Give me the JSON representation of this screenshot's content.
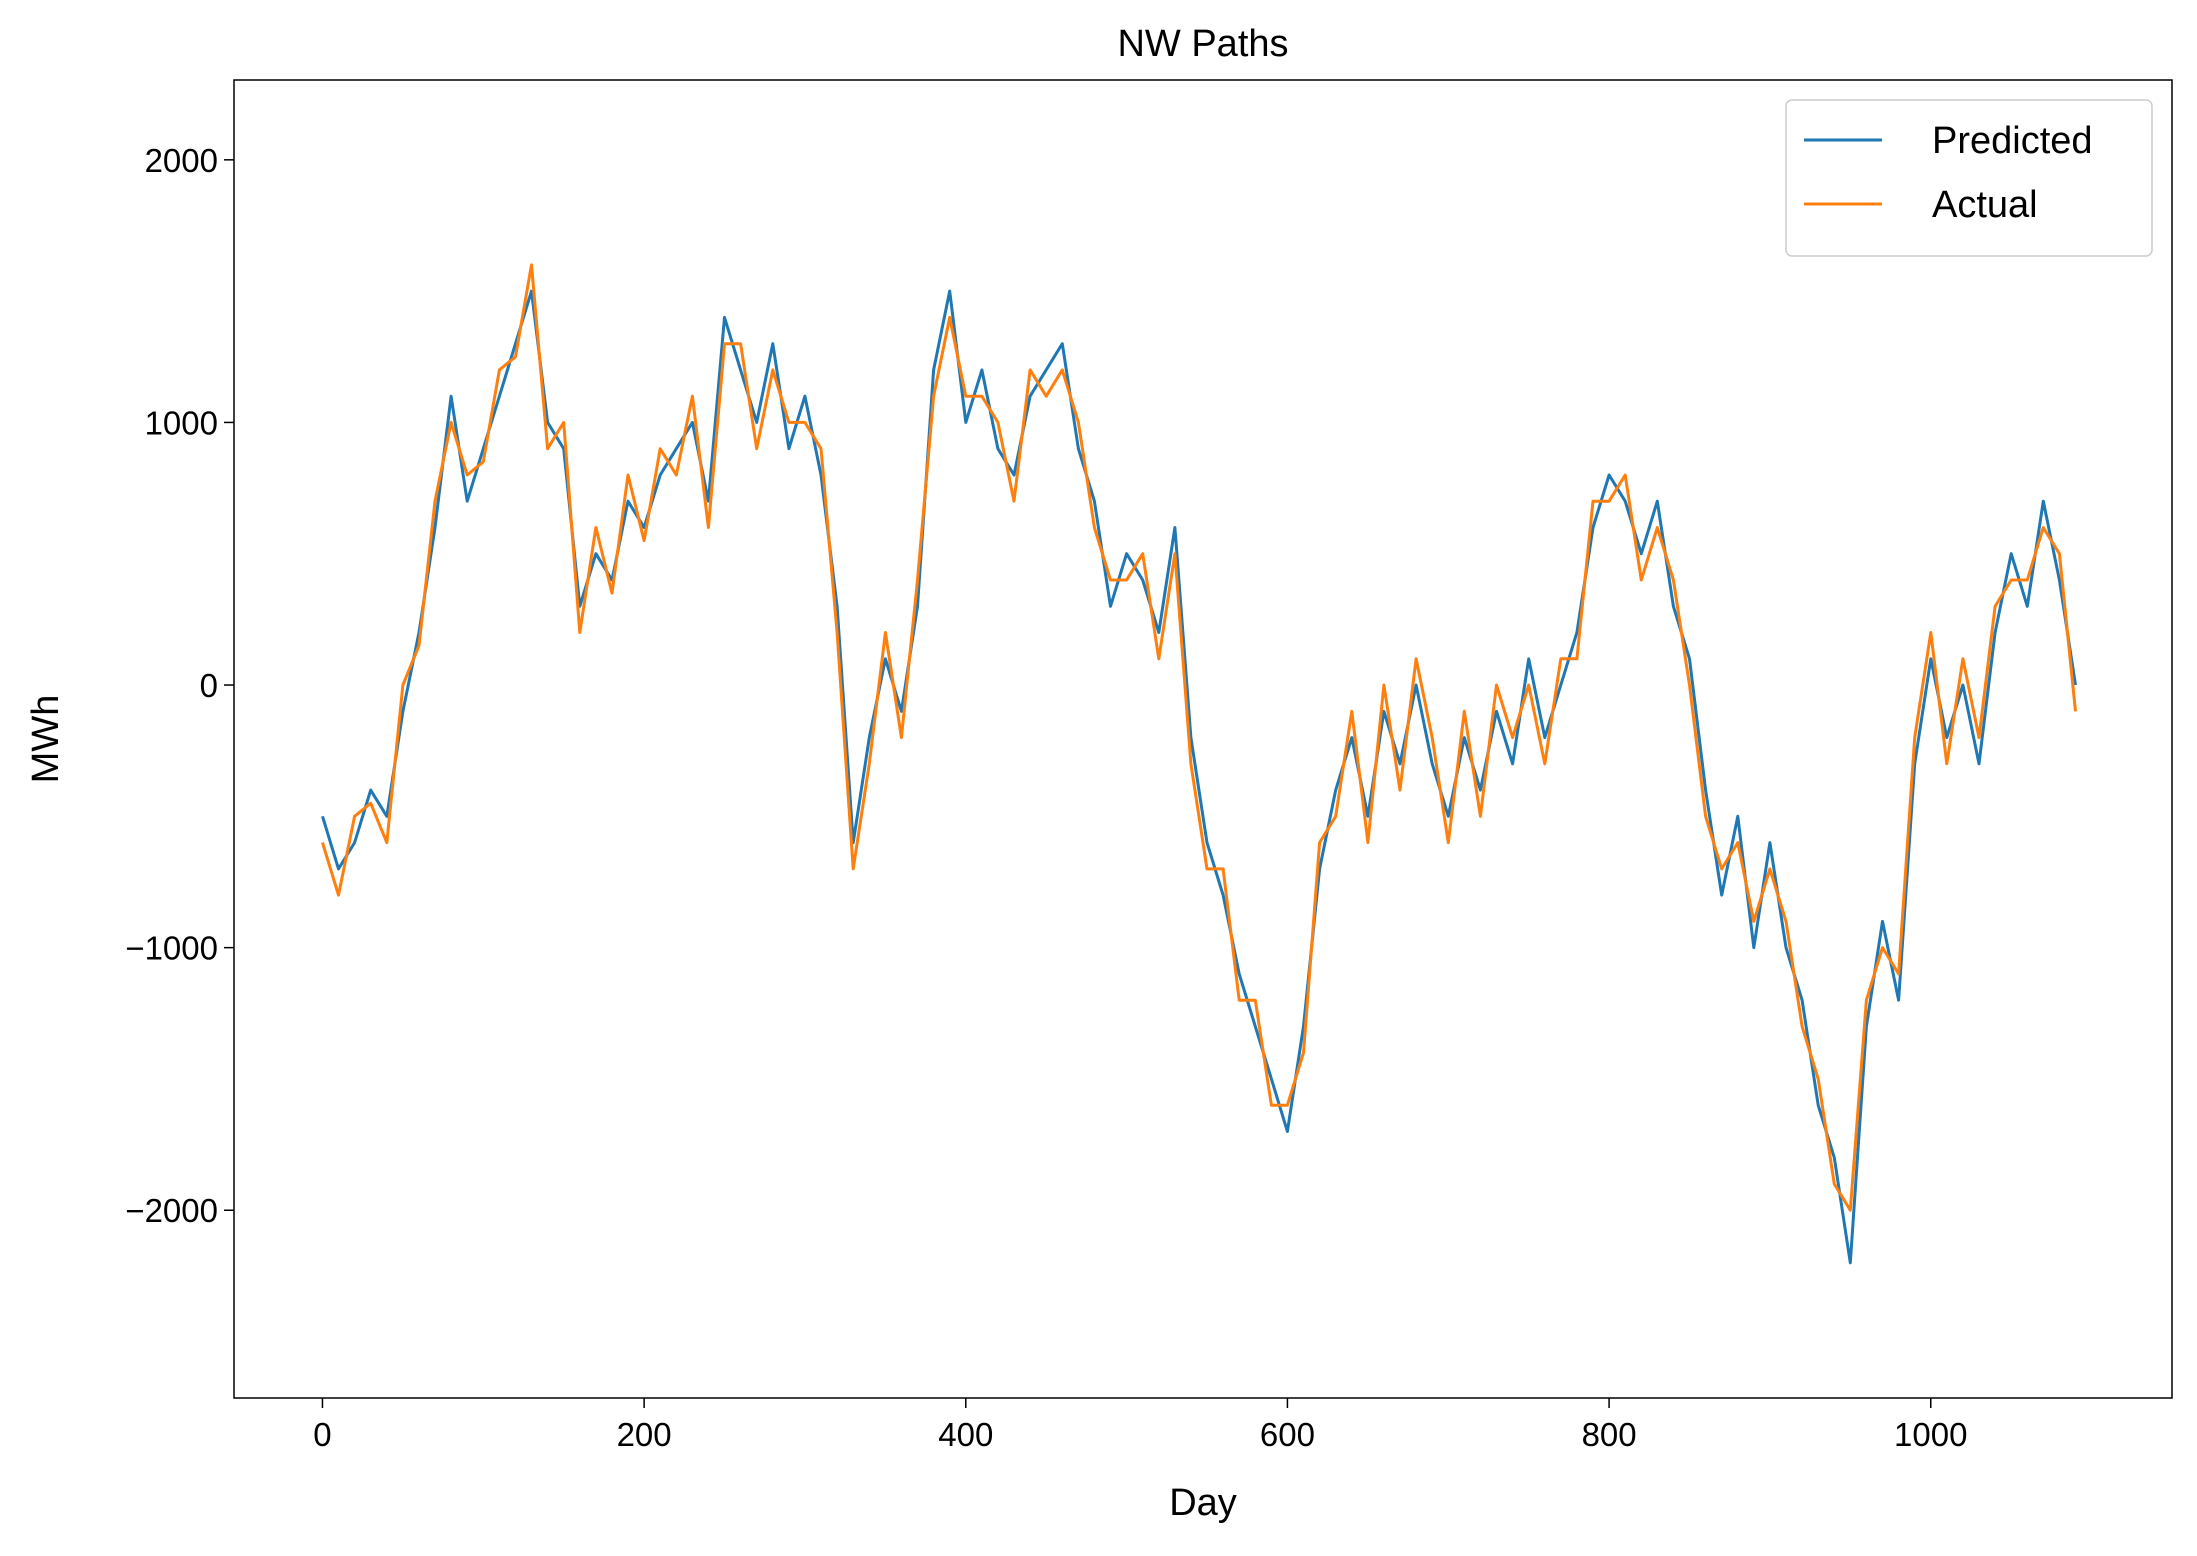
{
  "chart_data": {
    "type": "line",
    "title": "NW Paths",
    "x_label": "Day",
    "y_label": "MWh",
    "x": [
      0,
      10,
      20,
      30,
      40,
      50,
      60,
      70,
      80,
      90,
      100,
      110,
      120,
      130,
      140,
      150,
      160,
      170,
      180,
      190,
      200,
      210,
      220,
      230,
      240,
      250,
      260,
      270,
      280,
      290,
      300,
      310,
      320,
      330,
      340,
      350,
      360,
      370,
      380,
      390,
      400,
      410,
      420,
      430,
      440,
      450,
      460,
      470,
      480,
      490,
      500,
      510,
      520,
      530,
      540,
      550,
      560,
      570,
      580,
      590,
      600,
      610,
      620,
      630,
      640,
      650,
      660,
      670,
      680,
      690,
      700,
      710,
      720,
      730,
      740,
      750,
      760,
      770,
      780,
      790,
      800,
      810,
      820,
      830,
      840,
      850,
      860,
      870,
      880,
      890,
      900,
      910,
      920,
      930,
      940,
      950,
      960,
      970,
      980,
      990,
      1000,
      1010,
      1020,
      1030,
      1040,
      1050,
      1060,
      1070,
      1080,
      1090
    ],
    "series": [
      {
        "name": "Predicted",
        "color": "#1f77b4",
        "values": [
          -500,
          -700,
          -600,
          -400,
          -500,
          -100,
          200,
          600,
          1100,
          700,
          900,
          1100,
          1300,
          1500,
          1000,
          900,
          300,
          500,
          400,
          700,
          600,
          800,
          900,
          1000,
          700,
          1400,
          1200,
          1000,
          1300,
          900,
          1100,
          800,
          300,
          -600,
          -200,
          100,
          -100,
          300,
          1200,
          1500,
          1000,
          1200,
          900,
          800,
          1100,
          1200,
          1300,
          900,
          700,
          300,
          500,
          400,
          200,
          600,
          -200,
          -600,
          -800,
          -1100,
          -1300,
          -1500,
          -1700,
          -1300,
          -700,
          -400,
          -200,
          -500,
          -100,
          -300,
          0,
          -300,
          -500,
          -200,
          -400,
          -100,
          -300,
          100,
          -200,
          0,
          200,
          600,
          800,
          700,
          500,
          700,
          300,
          100,
          -400,
          -800,
          -500,
          -1000,
          -600,
          -1000,
          -1200,
          -1600,
          -1800,
          -2200,
          -1300,
          -900,
          -1200,
          -300,
          100,
          -200,
          0,
          -300,
          200,
          500,
          300,
          700,
          400,
          0
        ]
      },
      {
        "name": "Actual",
        "color": "#ff7f0e",
        "values": [
          -600,
          -800,
          -500,
          -450,
          -600,
          0,
          150,
          700,
          1000,
          800,
          850,
          1200,
          1250,
          1600,
          900,
          1000,
          200,
          600,
          350,
          800,
          550,
          900,
          800,
          1100,
          600,
          1300,
          1300,
          900,
          1200,
          1000,
          1000,
          900,
          200,
          -700,
          -300,
          200,
          -200,
          400,
          1100,
          1400,
          1100,
          1100,
          1000,
          700,
          1200,
          1100,
          1200,
          1000,
          600,
          400,
          400,
          500,
          100,
          500,
          -300,
          -700,
          -700,
          -1200,
          -1200,
          -1600,
          -1600,
          -1400,
          -600,
          -500,
          -100,
          -600,
          0,
          -400,
          100,
          -200,
          -600,
          -100,
          -500,
          0,
          -200,
          0,
          -300,
          100,
          100,
          700,
          700,
          800,
          400,
          600,
          400,
          0,
          -500,
          -700,
          -600,
          -900,
          -700,
          -900,
          -1300,
          -1500,
          -1900,
          -2000,
          -1200,
          -1000,
          -1100,
          -200,
          200,
          -300,
          100,
          -200,
          300,
          400,
          400,
          600,
          500,
          -100
        ]
      }
    ],
    "xlim": [
      -55,
      1150
    ],
    "ylim": [
      -2715,
      2304
    ],
    "xticks": [
      0,
      200,
      400,
      600,
      800,
      1000
    ],
    "yticks": [
      {
        "value": -2000,
        "label": "−2000"
      },
      {
        "value": -1000,
        "label": "−1000"
      },
      0,
      1000,
      2000
    ],
    "legend": "upper right"
  }
}
